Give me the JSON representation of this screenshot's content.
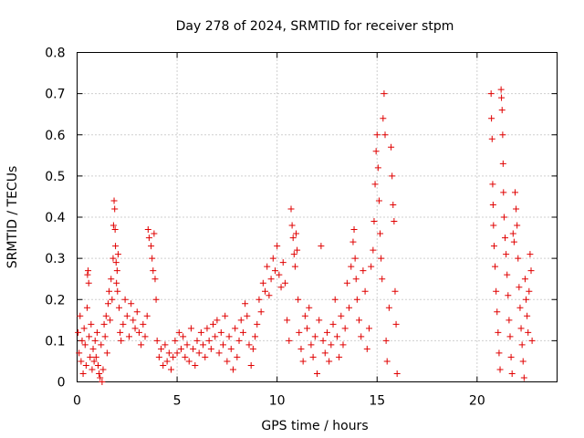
{
  "chart_data": {
    "type": "scatter",
    "title": "Day 278 of 2024, SRMTID for receiver stpm",
    "xlabel": "GPS time / hours",
    "ylabel": "SRMTID / TECUs",
    "xlim": [
      0,
      24
    ],
    "ylim": [
      0,
      0.8
    ],
    "xticks": [
      0,
      5,
      10,
      15,
      20
    ],
    "xtick_labels": [
      "0",
      "5",
      "10",
      "15",
      "20"
    ],
    "yticks": [
      0,
      0.1,
      0.2,
      0.3,
      0.4,
      0.5,
      0.6,
      0.7,
      0.8
    ],
    "ytick_labels": [
      "0",
      "0.1",
      "0.2",
      "0.3",
      "0.4",
      "0.5",
      "0.6",
      "0.7",
      "0.8"
    ],
    "grid": true,
    "legend": "none",
    "marker": "+",
    "color": "#e00000",
    "series": [
      {
        "name": "stpm",
        "points": [
          [
            0.05,
            0.12
          ],
          [
            0.1,
            0.07
          ],
          [
            0.15,
            0.16
          ],
          [
            0.2,
            0.05
          ],
          [
            0.25,
            0.1
          ],
          [
            0.3,
            0.02
          ],
          [
            0.35,
            0.13
          ],
          [
            0.4,
            0.09
          ],
          [
            0.45,
            0.04
          ],
          [
            0.5,
            0.18
          ],
          [
            0.52,
            0.26
          ],
          [
            0.55,
            0.27
          ],
          [
            0.58,
            0.24
          ],
          [
            0.6,
            0.11
          ],
          [
            0.65,
            0.06
          ],
          [
            0.7,
            0.14
          ],
          [
            0.75,
            0.03
          ],
          [
            0.8,
            0.08
          ],
          [
            0.85,
            0.05
          ],
          [
            0.9,
            0.1
          ],
          [
            0.95,
            0.06
          ],
          [
            1.0,
            0.12
          ],
          [
            1.05,
            0.04
          ],
          [
            1.1,
            0.02
          ],
          [
            1.15,
            0.01
          ],
          [
            1.2,
            0.09
          ],
          [
            1.25,
            0.0
          ],
          [
            1.3,
            0.03
          ],
          [
            1.35,
            0.14
          ],
          [
            1.4,
            0.11
          ],
          [
            1.45,
            0.16
          ],
          [
            1.5,
            0.07
          ],
          [
            1.55,
            0.19
          ],
          [
            1.6,
            0.22
          ],
          [
            1.65,
            0.15
          ],
          [
            1.7,
            0.25
          ],
          [
            1.75,
            0.2
          ],
          [
            1.8,
            0.3
          ],
          [
            1.82,
            0.38
          ],
          [
            1.85,
            0.44
          ],
          [
            1.88,
            0.42
          ],
          [
            1.9,
            0.37
          ],
          [
            1.92,
            0.33
          ],
          [
            1.95,
            0.29
          ],
          [
            1.97,
            0.24
          ],
          [
            2.0,
            0.27
          ],
          [
            2.02,
            0.22
          ],
          [
            2.05,
            0.31
          ],
          [
            2.1,
            0.18
          ],
          [
            2.15,
            0.12
          ],
          [
            2.2,
            0.1
          ],
          [
            2.3,
            0.14
          ],
          [
            2.4,
            0.2
          ],
          [
            2.5,
            0.16
          ],
          [
            2.6,
            0.11
          ],
          [
            2.7,
            0.19
          ],
          [
            2.8,
            0.15
          ],
          [
            2.9,
            0.13
          ],
          [
            3.0,
            0.17
          ],
          [
            3.1,
            0.12
          ],
          [
            3.2,
            0.09
          ],
          [
            3.3,
            0.14
          ],
          [
            3.4,
            0.11
          ],
          [
            3.5,
            0.16
          ],
          [
            3.55,
            0.37
          ],
          [
            3.6,
            0.35
          ],
          [
            3.7,
            0.33
          ],
          [
            3.75,
            0.3
          ],
          [
            3.8,
            0.27
          ],
          [
            3.85,
            0.36
          ],
          [
            3.9,
            0.25
          ],
          [
            3.95,
            0.2
          ],
          [
            4.0,
            0.1
          ],
          [
            4.1,
            0.06
          ],
          [
            4.2,
            0.08
          ],
          [
            4.3,
            0.04
          ],
          [
            4.4,
            0.09
          ],
          [
            4.5,
            0.05
          ],
          [
            4.6,
            0.07
          ],
          [
            4.7,
            0.03
          ],
          [
            4.8,
            0.06
          ],
          [
            4.9,
            0.1
          ],
          [
            5.0,
            0.07
          ],
          [
            5.1,
            0.12
          ],
          [
            5.2,
            0.08
          ],
          [
            5.3,
            0.11
          ],
          [
            5.4,
            0.06
          ],
          [
            5.5,
            0.09
          ],
          [
            5.6,
            0.05
          ],
          [
            5.7,
            0.13
          ],
          [
            5.8,
            0.08
          ],
          [
            5.9,
            0.04
          ],
          [
            6.0,
            0.1
          ],
          [
            6.1,
            0.07
          ],
          [
            6.2,
            0.12
          ],
          [
            6.3,
            0.09
          ],
          [
            6.4,
            0.06
          ],
          [
            6.5,
            0.13
          ],
          [
            6.6,
            0.1
          ],
          [
            6.7,
            0.08
          ],
          [
            6.8,
            0.14
          ],
          [
            6.9,
            0.11
          ],
          [
            7.0,
            0.15
          ],
          [
            7.1,
            0.07
          ],
          [
            7.2,
            0.12
          ],
          [
            7.3,
            0.09
          ],
          [
            7.4,
            0.16
          ],
          [
            7.5,
            0.05
          ],
          [
            7.6,
            0.11
          ],
          [
            7.7,
            0.08
          ],
          [
            7.8,
            0.03
          ],
          [
            7.9,
            0.13
          ],
          [
            8.0,
            0.06
          ],
          [
            8.1,
            0.1
          ],
          [
            8.2,
            0.15
          ],
          [
            8.3,
            0.12
          ],
          [
            8.4,
            0.19
          ],
          [
            8.5,
            0.16
          ],
          [
            8.6,
            0.09
          ],
          [
            8.7,
            0.04
          ],
          [
            8.8,
            0.08
          ],
          [
            8.9,
            0.11
          ],
          [
            9.0,
            0.14
          ],
          [
            9.1,
            0.2
          ],
          [
            9.2,
            0.17
          ],
          [
            9.3,
            0.24
          ],
          [
            9.4,
            0.22
          ],
          [
            9.5,
            0.28
          ],
          [
            9.6,
            0.21
          ],
          [
            9.7,
            0.25
          ],
          [
            9.8,
            0.3
          ],
          [
            9.9,
            0.27
          ],
          [
            10.0,
            0.33
          ],
          [
            10.1,
            0.26
          ],
          [
            10.2,
            0.23
          ],
          [
            10.3,
            0.29
          ],
          [
            10.4,
            0.24
          ],
          [
            10.5,
            0.15
          ],
          [
            10.6,
            0.1
          ],
          [
            10.7,
            0.42
          ],
          [
            10.75,
            0.38
          ],
          [
            10.8,
            0.35
          ],
          [
            10.85,
            0.31
          ],
          [
            10.9,
            0.28
          ],
          [
            10.95,
            0.36
          ],
          [
            11.0,
            0.32
          ],
          [
            11.05,
            0.2
          ],
          [
            11.1,
            0.12
          ],
          [
            11.2,
            0.08
          ],
          [
            11.3,
            0.05
          ],
          [
            11.4,
            0.16
          ],
          [
            11.5,
            0.13
          ],
          [
            11.6,
            0.18
          ],
          [
            11.7,
            0.09
          ],
          [
            11.8,
            0.06
          ],
          [
            11.9,
            0.11
          ],
          [
            12.0,
            0.02
          ],
          [
            12.1,
            0.15
          ],
          [
            12.2,
            0.33
          ],
          [
            12.3,
            0.1
          ],
          [
            12.4,
            0.07
          ],
          [
            12.5,
            0.12
          ],
          [
            12.6,
            0.05
          ],
          [
            12.7,
            0.09
          ],
          [
            12.8,
            0.14
          ],
          [
            12.9,
            0.2
          ],
          [
            13.0,
            0.11
          ],
          [
            13.1,
            0.06
          ],
          [
            13.2,
            0.16
          ],
          [
            13.3,
            0.09
          ],
          [
            13.4,
            0.13
          ],
          [
            13.5,
            0.24
          ],
          [
            13.6,
            0.18
          ],
          [
            13.7,
            0.28
          ],
          [
            13.8,
            0.34
          ],
          [
            13.85,
            0.37
          ],
          [
            13.9,
            0.3
          ],
          [
            13.95,
            0.25
          ],
          [
            14.0,
            0.2
          ],
          [
            14.1,
            0.15
          ],
          [
            14.2,
            0.11
          ],
          [
            14.3,
            0.27
          ],
          [
            14.4,
            0.22
          ],
          [
            14.5,
            0.08
          ],
          [
            14.6,
            0.13
          ],
          [
            14.7,
            0.28
          ],
          [
            14.8,
            0.32
          ],
          [
            14.85,
            0.39
          ],
          [
            14.9,
            0.48
          ],
          [
            14.95,
            0.56
          ],
          [
            15.0,
            0.6
          ],
          [
            15.05,
            0.52
          ],
          [
            15.1,
            0.44
          ],
          [
            15.15,
            0.36
          ],
          [
            15.2,
            0.3
          ],
          [
            15.25,
            0.25
          ],
          [
            15.3,
            0.64
          ],
          [
            15.35,
            0.7
          ],
          [
            15.4,
            0.6
          ],
          [
            15.45,
            0.1
          ],
          [
            15.5,
            0.05
          ],
          [
            15.6,
            0.18
          ],
          [
            15.7,
            0.57
          ],
          [
            15.75,
            0.5
          ],
          [
            15.8,
            0.43
          ],
          [
            15.85,
            0.39
          ],
          [
            15.9,
            0.22
          ],
          [
            15.95,
            0.14
          ],
          [
            16.0,
            0.02
          ],
          [
            20.7,
            0.7
          ],
          [
            20.72,
            0.64
          ],
          [
            20.75,
            0.59
          ],
          [
            20.78,
            0.48
          ],
          [
            20.8,
            0.43
          ],
          [
            20.82,
            0.38
          ],
          [
            20.85,
            0.33
          ],
          [
            20.9,
            0.28
          ],
          [
            20.95,
            0.22
          ],
          [
            21.0,
            0.17
          ],
          [
            21.05,
            0.12
          ],
          [
            21.1,
            0.07
          ],
          [
            21.15,
            0.03
          ],
          [
            21.2,
            0.71
          ],
          [
            21.22,
            0.69
          ],
          [
            21.25,
            0.66
          ],
          [
            21.28,
            0.6
          ],
          [
            21.3,
            0.53
          ],
          [
            21.32,
            0.46
          ],
          [
            21.35,
            0.4
          ],
          [
            21.4,
            0.35
          ],
          [
            21.45,
            0.31
          ],
          [
            21.5,
            0.26
          ],
          [
            21.55,
            0.21
          ],
          [
            21.6,
            0.15
          ],
          [
            21.65,
            0.11
          ],
          [
            21.7,
            0.06
          ],
          [
            21.75,
            0.02
          ],
          [
            21.8,
            0.36
          ],
          [
            21.85,
            0.34
          ],
          [
            21.9,
            0.46
          ],
          [
            21.95,
            0.42
          ],
          [
            22.0,
            0.38
          ],
          [
            22.05,
            0.3
          ],
          [
            22.1,
            0.23
          ],
          [
            22.15,
            0.18
          ],
          [
            22.2,
            0.13
          ],
          [
            22.25,
            0.09
          ],
          [
            22.3,
            0.05
          ],
          [
            22.35,
            0.01
          ],
          [
            22.4,
            0.25
          ],
          [
            22.45,
            0.2
          ],
          [
            22.5,
            0.16
          ],
          [
            22.55,
            0.12
          ],
          [
            22.6,
            0.22
          ],
          [
            22.65,
            0.31
          ],
          [
            22.7,
            0.27
          ],
          [
            22.75,
            0.1
          ]
        ]
      }
    ]
  }
}
